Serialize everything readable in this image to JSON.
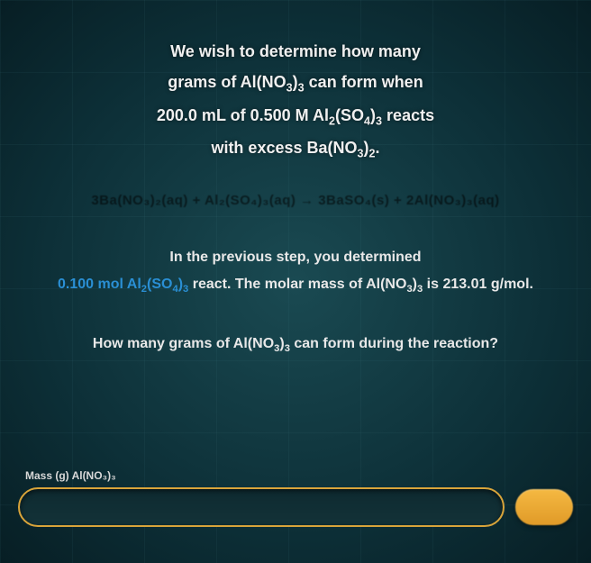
{
  "problem": {
    "line1": "We wish to determine how many",
    "line2_pre": "grams of Al(NO",
    "line2_sub1": "3",
    "line2_mid": ")",
    "line2_sub2": "3",
    "line2_post": " can form when",
    "line3_pre": "200.0 mL of 0.500 M Al",
    "line3_sub1": "2",
    "line3_mid1": "(SO",
    "line3_sub2": "4",
    "line3_mid2": ")",
    "line3_sub3": "3",
    "line3_post": " reacts",
    "line4_pre": "with excess Ba(NO",
    "line4_sub1": "3",
    "line4_mid": ")",
    "line4_sub2": "2",
    "line4_post": "."
  },
  "equation": "3Ba(NO₃)₂(aq) + Al₂(SO₄)₃(aq) → 3BaSO₄(s) + 2Al(NO₃)₃(aq)",
  "prev": {
    "line1": "In the previous step, you determined",
    "hl_pre": "0.100 mol Al",
    "hl_sub1": "2",
    "hl_mid1": "(SO",
    "hl_sub2": "4",
    "hl_mid2": ")",
    "hl_sub3": "3",
    "line2_post_pre": " react. The molar mass of Al(NO",
    "line2_sub1": "3",
    "line2_mid": ")",
    "line2_sub2": "3",
    "line2_post": " is 213.01 g/mol."
  },
  "question": {
    "pre": "How many grams of Al(NO",
    "sub1": "3",
    "mid": ")",
    "sub2": "3",
    "post": " can form during the reaction?"
  },
  "input": {
    "label": "Mass (g) Al(NO₃)₃",
    "placeholder": ""
  },
  "colors": {
    "highlight": "#2a8fd4",
    "input_border": "#d9a43a",
    "button_bg": "#f5b942",
    "text": "#e8e8e8",
    "bg_center": "#1a4a52",
    "bg_edge": "#071e24"
  }
}
